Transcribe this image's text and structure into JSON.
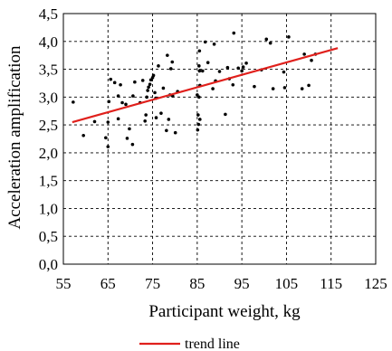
{
  "chart_data": {
    "type": "scatter",
    "title": "",
    "xlabel": "Participant weight, kg",
    "ylabel": "Acceleration amplification",
    "xlim": [
      55,
      125
    ],
    "ylim": [
      0.0,
      4.5
    ],
    "x_ticks": [
      55,
      65,
      75,
      85,
      95,
      105,
      115,
      125
    ],
    "y_ticks": [
      0.0,
      0.5,
      1.0,
      1.5,
      2.0,
      2.5,
      3.0,
      3.5,
      4.0,
      4.5
    ],
    "x_tick_labels": [
      "55",
      "65",
      "75",
      "85",
      "95",
      "105",
      "115",
      "125"
    ],
    "y_tick_labels": [
      "0,0",
      "0,5",
      "1,0",
      "1,5",
      "2,0",
      "2,5",
      "3,0",
      "3,5",
      "4,0",
      "4,5"
    ],
    "grid": true,
    "grid_style": "dashed",
    "legend_position": "bottom",
    "point_color": "#000000",
    "trend_color": "#e0201c",
    "series": [
      {
        "points": [
          [
            57.2,
            2.91
          ],
          [
            59.5,
            2.31
          ],
          [
            62.0,
            2.56
          ],
          [
            64.5,
            2.27
          ],
          [
            65.0,
            2.11
          ],
          [
            65.0,
            2.55
          ],
          [
            65.2,
            2.92
          ],
          [
            65.6,
            3.32
          ],
          [
            66.5,
            3.26
          ],
          [
            67.3,
            2.61
          ],
          [
            67.3,
            3.02
          ],
          [
            67.8,
            3.22
          ],
          [
            68.2,
            2.9
          ],
          [
            69.0,
            2.87
          ],
          [
            69.3,
            2.26
          ],
          [
            69.8,
            2.43
          ],
          [
            70.5,
            2.15
          ],
          [
            70.6,
            3.02
          ],
          [
            71.0,
            3.27
          ],
          [
            72.2,
            2.9
          ],
          [
            72.8,
            3.3
          ],
          [
            73.3,
            2.57
          ],
          [
            73.5,
            2.68
          ],
          [
            73.7,
            3.0
          ],
          [
            73.9,
            3.12
          ],
          [
            74.1,
            3.18
          ],
          [
            74.4,
            3.23
          ],
          [
            74.6,
            3.31
          ],
          [
            75.0,
            3.35
          ],
          [
            75.2,
            3.39
          ],
          [
            75.5,
            3.08
          ],
          [
            75.7,
            2.98
          ],
          [
            75.8,
            2.63
          ],
          [
            76.3,
            3.56
          ],
          [
            76.9,
            2.71
          ],
          [
            77.4,
            3.16
          ],
          [
            78.1,
            2.4
          ],
          [
            78.3,
            3.75
          ],
          [
            78.6,
            2.6
          ],
          [
            78.9,
            3.04
          ],
          [
            79.1,
            3.51
          ],
          [
            79.4,
            3.63
          ],
          [
            79.5,
            3.02
          ],
          [
            80.1,
            2.36
          ],
          [
            80.6,
            3.1
          ],
          [
            85.0,
            3.04
          ],
          [
            85.1,
            2.41
          ],
          [
            85.2,
            2.68
          ],
          [
            85.3,
            2.51
          ],
          [
            85.4,
            3.0
          ],
          [
            85.4,
            3.56
          ],
          [
            85.5,
            3.83
          ],
          [
            85.5,
            3.47
          ],
          [
            85.6,
            3.21
          ],
          [
            85.6,
            2.6
          ],
          [
            86.2,
            3.47
          ],
          [
            86.8,
            3.99
          ],
          [
            87.4,
            3.62
          ],
          [
            88.5,
            3.15
          ],
          [
            88.8,
            3.95
          ],
          [
            89.1,
            3.29
          ],
          [
            90.0,
            3.46
          ],
          [
            91.3,
            2.69
          ],
          [
            91.8,
            3.53
          ],
          [
            92.2,
            3.33
          ],
          [
            93.0,
            3.22
          ],
          [
            93.2,
            4.15
          ],
          [
            94.2,
            3.52
          ],
          [
            95.0,
            3.47
          ],
          [
            95.3,
            3.54
          ],
          [
            96.0,
            3.61
          ],
          [
            97.8,
            3.19
          ],
          [
            99.4,
            3.49
          ],
          [
            100.5,
            4.04
          ],
          [
            101.4,
            3.97
          ],
          [
            102.0,
            3.15
          ],
          [
            104.4,
            3.45
          ],
          [
            104.6,
            3.17
          ],
          [
            105.5,
            4.08
          ],
          [
            108.5,
            3.15
          ],
          [
            109.0,
            3.77
          ],
          [
            110.0,
            3.21
          ],
          [
            110.6,
            3.66
          ],
          [
            111.5,
            3.77
          ]
        ]
      },
      {
        "name": "trend line",
        "type": "line",
        "x": [
          57,
          116.5
        ],
        "y": [
          2.55,
          3.88
        ]
      }
    ]
  }
}
